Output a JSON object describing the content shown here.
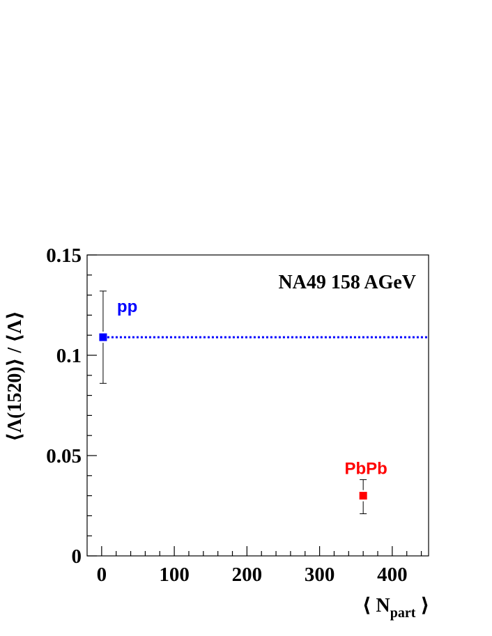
{
  "chart_data": {
    "type": "scatter",
    "title": "",
    "xlabel": "⟨ N_part ⟩",
    "ylabel": "⟨Λ(1520)⟩ / ⟨Λ⟩",
    "xlabel_main": "N",
    "xlabel_sub": "part",
    "xlim": [
      -20,
      450
    ],
    "ylim": [
      0,
      0.15
    ],
    "x_ticks": [
      0,
      100,
      200,
      300,
      400
    ],
    "x_tick_labels": [
      "0",
      "100",
      "200",
      "300",
      "400"
    ],
    "y_ticks": [
      0,
      0.05,
      0.1,
      0.15
    ],
    "y_tick_labels": [
      "0",
      "0.05",
      "0.1",
      "0.15"
    ],
    "annotation": "NA49 158 AGeV",
    "grid": false,
    "series": [
      {
        "name": "pp",
        "color": "#0000ff",
        "points": [
          {
            "x": 2,
            "y": 0.109,
            "err_low": 0.086,
            "err_high": 0.132
          }
        ],
        "reference_line_y": 0.109
      },
      {
        "name": "PbPb",
        "color": "#ff0000",
        "points": [
          {
            "x": 360,
            "y": 0.03,
            "err_low": 0.021,
            "err_high": 0.038
          }
        ]
      }
    ]
  }
}
